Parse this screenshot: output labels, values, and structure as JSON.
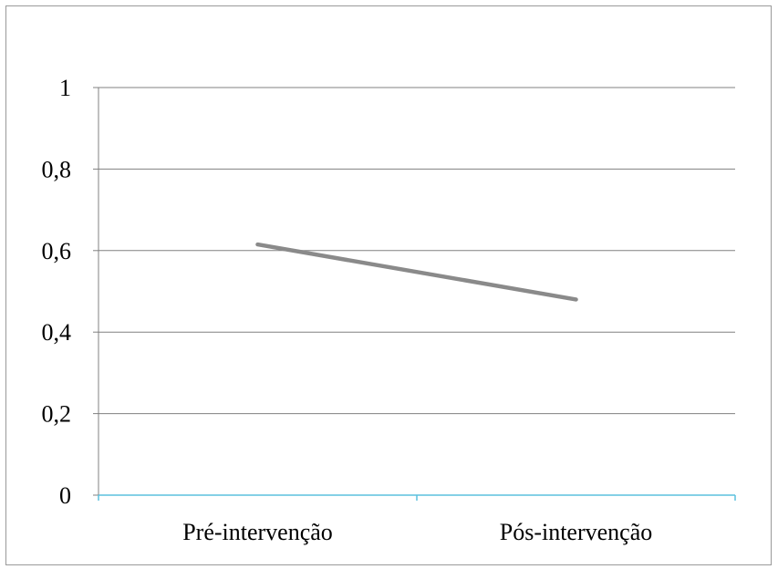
{
  "chart_data": {
    "type": "line",
    "categories": [
      "Pré-intervenção",
      "Pós-intervenção"
    ],
    "series": [
      {
        "values": [
          0.615,
          0.48
        ]
      }
    ],
    "yticks": [
      "0",
      "0,2",
      "0,4",
      "0,6",
      "0,8",
      "1"
    ],
    "ylim": [
      0,
      1
    ],
    "grid": true,
    "legend": "none",
    "colors": {
      "line": "#8a8a8a",
      "gridline": "#808080",
      "x_axis": "#5bc0de",
      "frame": "#9a9a9a"
    }
  }
}
